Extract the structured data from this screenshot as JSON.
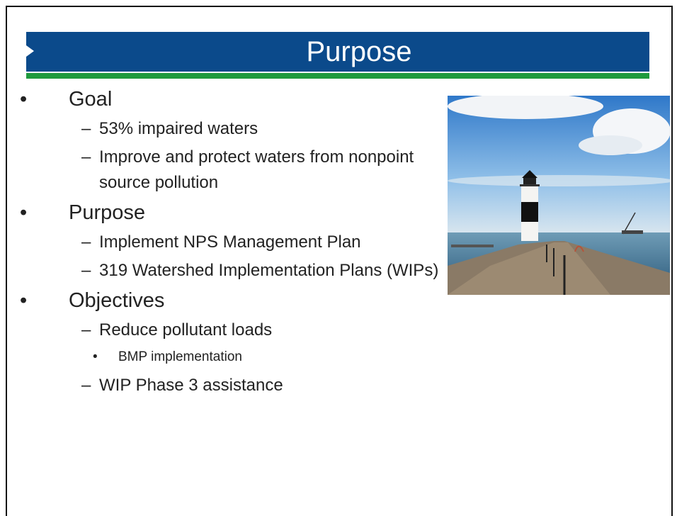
{
  "header": {
    "title": "Purpose"
  },
  "bullets": [
    {
      "text": "Goal",
      "children": [
        {
          "text": "53% impaired waters"
        },
        {
          "text": "Improve and protect waters from nonpoint source pollution"
        }
      ]
    },
    {
      "text": "Purpose",
      "children": [
        {
          "text": "Implement NPS Management Plan"
        },
        {
          "text": "319 Watershed Implementation Plans (WIPs)"
        }
      ]
    },
    {
      "text": "Objectives",
      "children": [
        {
          "text": "Reduce pollutant loads",
          "children": [
            {
              "text": "BMP implementation"
            }
          ]
        },
        {
          "text": "WIP Phase 3 assistance"
        }
      ]
    }
  ]
}
